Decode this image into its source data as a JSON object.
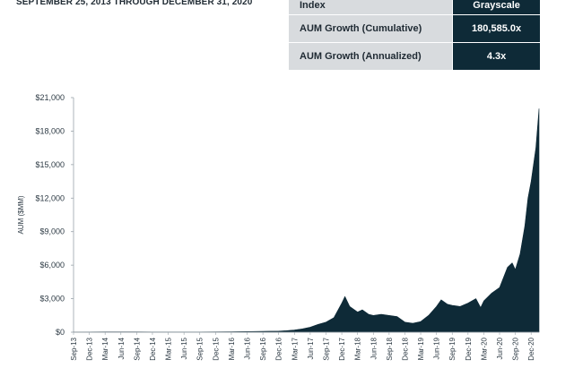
{
  "header": {
    "subtitle": "SEPTEMBER 25, 2013 THROUGH DECEMBER 31, 2020"
  },
  "stats_table": {
    "rows": [
      {
        "label": "Index",
        "value": "Grayscale"
      },
      {
        "label": "AUM Growth (Cumulative)",
        "value": "180,585.0x"
      },
      {
        "label": "AUM Growth (Annualized)",
        "value": "4.3x"
      }
    ]
  },
  "colors": {
    "area": "#0e2a37",
    "label_bg": "#d8dbde",
    "value_bg": "#0e2a37"
  },
  "chart_data": {
    "type": "area",
    "xlabel": "",
    "ylabel": "AUM ($MM)",
    "ylim": [
      0,
      21000
    ],
    "yticks": [
      0,
      3000,
      6000,
      9000,
      12000,
      15000,
      18000,
      21000
    ],
    "ytick_labels": [
      "$0",
      "$3,000",
      "$6,000",
      "$9,000",
      "$12,000",
      "$15,000",
      "$18,000",
      "$21,000"
    ],
    "xtick_labels": [
      "Sep-13",
      "Dec-13",
      "Mar-14",
      "Jun-14",
      "Sep-14",
      "Dec-14",
      "Mar-15",
      "Jun-15",
      "Sep-15",
      "Dec-15",
      "Mar-16",
      "Jun-16",
      "Sep-16",
      "Dec-16",
      "Mar-17",
      "Jun-17",
      "Sep-17",
      "Dec-17",
      "Mar-18",
      "Jun-18",
      "Sep-18",
      "Dec-18",
      "Mar-19",
      "Jun-19",
      "Sep-19",
      "Dec-19",
      "Mar-20",
      "Jun-20",
      "Sep-20",
      "Dec-20"
    ],
    "grid": false,
    "series": [
      {
        "points": [
          [
            0,
            2
          ],
          [
            1,
            15
          ],
          [
            2,
            25
          ],
          [
            3,
            30
          ],
          [
            4,
            22
          ],
          [
            5,
            18
          ],
          [
            6,
            12
          ],
          [
            7,
            14
          ],
          [
            8,
            12
          ],
          [
            9,
            25
          ],
          [
            10,
            40
          ],
          [
            11,
            60
          ],
          [
            12,
            80
          ],
          [
            13,
            100
          ],
          [
            13.5,
            140
          ],
          [
            14,
            200
          ],
          [
            14.5,
            300
          ],
          [
            15,
            450
          ],
          [
            15.5,
            700
          ],
          [
            16,
            900
          ],
          [
            16.5,
            1300
          ],
          [
            17,
            2600
          ],
          [
            17.2,
            3200
          ],
          [
            17.5,
            2300
          ],
          [
            18,
            1800
          ],
          [
            18.3,
            2000
          ],
          [
            18.7,
            1600
          ],
          [
            19,
            1500
          ],
          [
            19.5,
            1600
          ],
          [
            20,
            1500
          ],
          [
            20.5,
            1400
          ],
          [
            21,
            900
          ],
          [
            21.5,
            800
          ],
          [
            22,
            950
          ],
          [
            22.5,
            1500
          ],
          [
            23,
            2300
          ],
          [
            23.3,
            2900
          ],
          [
            23.7,
            2500
          ],
          [
            24,
            2400
          ],
          [
            24.5,
            2300
          ],
          [
            25,
            2600
          ],
          [
            25.5,
            3000
          ],
          [
            25.8,
            2200
          ],
          [
            26,
            2800
          ],
          [
            26.5,
            3500
          ],
          [
            27,
            4000
          ],
          [
            27.5,
            5800
          ],
          [
            27.8,
            6200
          ],
          [
            28,
            5600
          ],
          [
            28.3,
            7000
          ],
          [
            28.6,
            9500
          ],
          [
            28.8,
            12000
          ],
          [
            29,
            13500
          ],
          [
            29.3,
            16500
          ],
          [
            29.5,
            20000
          ]
        ]
      }
    ]
  }
}
